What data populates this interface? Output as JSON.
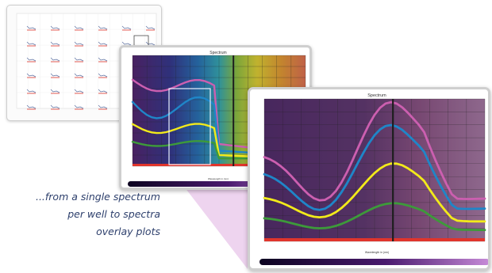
{
  "caption": {
    "line1": "...from a single spectrum",
    "line2": "per well to spectra",
    "line3": "overlay plots"
  },
  "spectrum": {
    "title": "Spectrum",
    "xlabel": "Wavelength in (nm)",
    "marker_index": 7,
    "colors": {
      "magenta": "#cc5fb0",
      "blue": "#1f86c8",
      "yellow": "#f2ea1a",
      "green": "#3d9a3a",
      "marker": "#1e1e1e",
      "baseline": "#e0352c"
    }
  },
  "plate": {
    "rows": 6,
    "cols": 6
  }
}
